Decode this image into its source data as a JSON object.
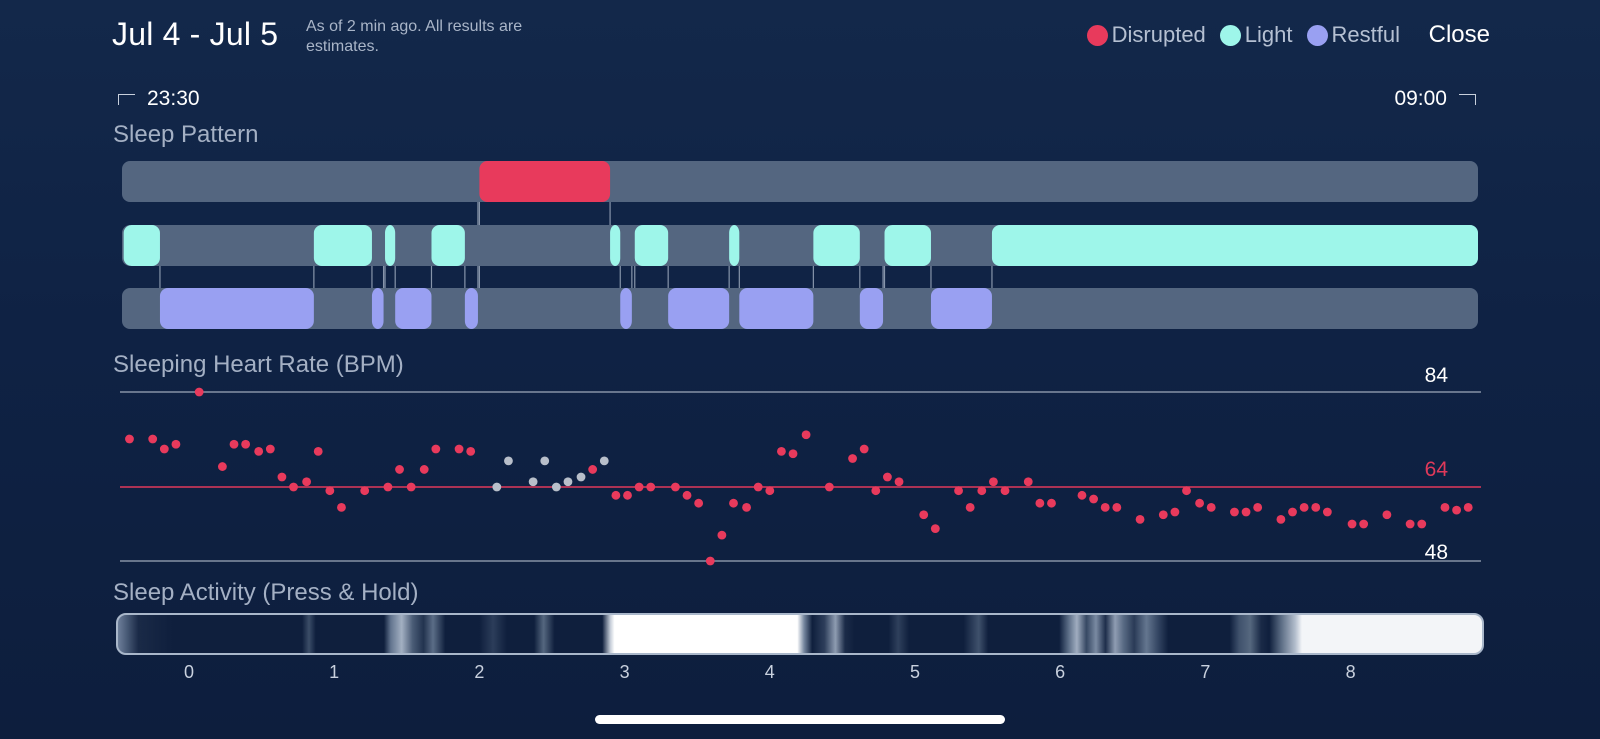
{
  "header": {
    "date_range": "Jul 4 - Jul 5",
    "note": "As of 2 min ago. All results are estimates.",
    "close_label": "Close"
  },
  "legend": [
    {
      "label": "Disrupted",
      "color": "#e83a5c"
    },
    {
      "label": "Light",
      "color": "#9ef6ea"
    },
    {
      "label": "Restful",
      "color": "#99a0f2"
    }
  ],
  "timeline": {
    "start_label": "23:30",
    "end_label": "09:00"
  },
  "sleep_pattern": {
    "title": "Sleep Pattern",
    "x_min": -0.45,
    "x_max": 8.9,
    "disrupted": [
      [
        2.0,
        2.9
      ]
    ],
    "light": [
      [
        -0.45,
        -0.2
      ],
      [
        0.86,
        1.26
      ],
      [
        1.35,
        1.42
      ],
      [
        1.67,
        1.9
      ],
      [
        2.9,
        2.97
      ],
      [
        3.07,
        3.3
      ],
      [
        3.72,
        3.79
      ],
      [
        4.3,
        4.62
      ],
      [
        4.79,
        5.11
      ],
      [
        5.53,
        8.9
      ]
    ],
    "restful": [
      [
        -0.2,
        0.86
      ],
      [
        1.26,
        1.34
      ],
      [
        1.42,
        1.67
      ],
      [
        1.9,
        1.99
      ],
      [
        2.97,
        3.05
      ],
      [
        3.3,
        3.72
      ],
      [
        3.79,
        4.3
      ],
      [
        4.62,
        4.78
      ],
      [
        5.11,
        5.53
      ]
    ]
  },
  "heart_rate": {
    "title": "Sleeping Heart Rate (BPM)",
    "max_label": "84",
    "avg_label": "64",
    "min_label": "48",
    "y_max": 84,
    "y_avg": 64,
    "y_min": 48,
    "points": [
      [
        -0.41,
        74.1
      ],
      [
        -0.25,
        74.1
      ],
      [
        -0.17,
        72.0
      ],
      [
        -0.09,
        73.0
      ],
      [
        0.23,
        68.3
      ],
      [
        0.31,
        73.0
      ],
      [
        0.39,
        73.0
      ],
      [
        0.48,
        71.5
      ],
      [
        0.56,
        72.0
      ],
      [
        0.64,
        66.1
      ],
      [
        0.72,
        64.0
      ],
      [
        0.81,
        65.1
      ],
      [
        0.89,
        71.5
      ],
      [
        0.97,
        63.2
      ],
      [
        1.05,
        59.6
      ],
      [
        1.21,
        63.2
      ],
      [
        1.37,
        64.0
      ],
      [
        1.45,
        67.7
      ],
      [
        1.53,
        64.0
      ],
      [
        1.62,
        67.7
      ],
      [
        1.7,
        72.0
      ],
      [
        1.86,
        72.0
      ],
      [
        1.94,
        71.5
      ],
      [
        2.78,
        67.7
      ],
      [
        2.94,
        62.2
      ],
      [
        3.02,
        62.2
      ],
      [
        3.1,
        64.0
      ],
      [
        3.18,
        64.0
      ],
      [
        3.35,
        64.0
      ],
      [
        3.43,
        62.2
      ],
      [
        3.51,
        60.5
      ],
      [
        3.59,
        48.0
      ],
      [
        3.67,
        53.6
      ],
      [
        3.75,
        60.5
      ],
      [
        3.84,
        59.6
      ],
      [
        3.92,
        64.0
      ],
      [
        4.0,
        63.2
      ],
      [
        4.08,
        71.5
      ],
      [
        4.16,
        71.0
      ],
      [
        4.25,
        75.0
      ],
      [
        4.41,
        64.0
      ],
      [
        4.57,
        70.0
      ],
      [
        4.65,
        72.0
      ],
      [
        4.73,
        63.2
      ],
      [
        4.81,
        66.1
      ],
      [
        4.89,
        65.1
      ],
      [
        5.06,
        58.0
      ],
      [
        5.14,
        55.0
      ],
      [
        5.3,
        63.2
      ],
      [
        5.38,
        59.6
      ],
      [
        5.46,
        63.2
      ],
      [
        5.54,
        65.1
      ],
      [
        5.62,
        63.2
      ],
      [
        5.78,
        65.1
      ],
      [
        5.86,
        60.5
      ],
      [
        5.94,
        60.5
      ],
      [
        6.15,
        62.2
      ],
      [
        6.23,
        61.4
      ],
      [
        6.31,
        59.6
      ],
      [
        6.39,
        59.6
      ],
      [
        6.55,
        57.0
      ],
      [
        6.71,
        58.0
      ],
      [
        6.79,
        58.6
      ],
      [
        6.87,
        63.2
      ],
      [
        6.96,
        60.5
      ],
      [
        7.04,
        59.6
      ],
      [
        7.2,
        58.6
      ],
      [
        7.28,
        58.6
      ],
      [
        7.36,
        59.6
      ],
      [
        7.52,
        57.0
      ],
      [
        7.6,
        58.6
      ],
      [
        7.68,
        59.6
      ],
      [
        7.76,
        59.6
      ],
      [
        7.84,
        58.6
      ],
      [
        8.01,
        56.0
      ],
      [
        8.09,
        56.0
      ],
      [
        8.25,
        58.0
      ],
      [
        8.41,
        56.0
      ],
      [
        8.49,
        56.0
      ],
      [
        8.65,
        59.6
      ],
      [
        8.73,
        59.0
      ],
      [
        8.81,
        59.6
      ],
      [
        0.07,
        84.0
      ]
    ],
    "gray_points": [
      [
        2.12,
        64.0
      ],
      [
        2.2,
        69.5
      ],
      [
        2.37,
        65.1
      ],
      [
        2.45,
        69.5
      ],
      [
        2.53,
        64.0
      ],
      [
        2.61,
        65.1
      ],
      [
        2.7,
        66.1
      ],
      [
        2.86,
        69.5
      ]
    ]
  },
  "sleep_activity": {
    "title": "Sleep Activity (Press & Hold)"
  },
  "axis": {
    "ticks": [
      "0",
      "1",
      "2",
      "3",
      "4",
      "5",
      "6",
      "7",
      "8"
    ]
  },
  "colors": {
    "disrupted": "#e83a5c",
    "light": "#9ef6ea",
    "restful": "#99a0f2",
    "track": "#546680",
    "hr_dot": "#e83a5c",
    "hr_dot_gray": "#b8bfca",
    "avg_line": "#e0395a",
    "grid_line": "#8592a6"
  }
}
